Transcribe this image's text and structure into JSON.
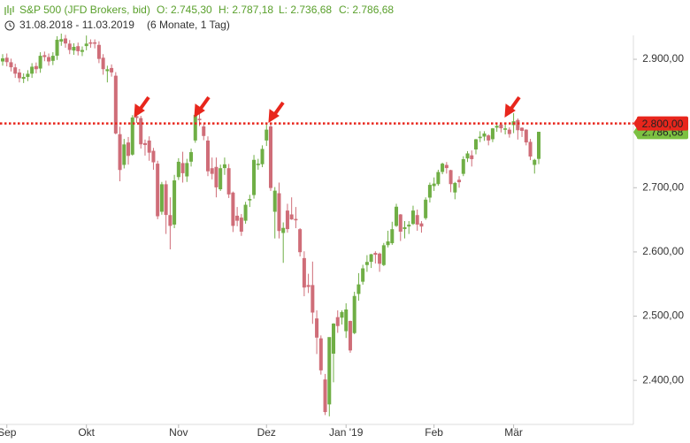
{
  "chart_data": {
    "type": "candlestick",
    "title": "S&P 500 (JFD Brokers, bid)",
    "summary": [
      "O: 2.745,30",
      "H: 2.787,18",
      "L: 2.736,68",
      "C: 2.786,68"
    ],
    "subtitle": "31.08.2018 - 11.03.2019",
    "period": "(6 Monate, 1 Tag)",
    "up_color": "#6fae45",
    "down_color": "#cf6d78",
    "categories": [
      null,
      "Sep",
      null,
      null,
      null,
      null,
      null,
      null,
      null,
      null,
      null,
      null,
      null,
      null,
      null,
      null,
      null,
      null,
      null,
      null,
      "Okt",
      null,
      null,
      null,
      null,
      null,
      null,
      null,
      null,
      null,
      null,
      null,
      null,
      null,
      null,
      null,
      null,
      null,
      null,
      null,
      null,
      null,
      "Nov",
      null,
      null,
      null,
      null,
      null,
      null,
      null,
      null,
      null,
      null,
      null,
      null,
      null,
      null,
      null,
      null,
      null,
      null,
      null,
      null,
      "Dez",
      null,
      null,
      null,
      null,
      null,
      null,
      null,
      null,
      null,
      null,
      null,
      null,
      null,
      null,
      null,
      null,
      null,
      null,
      "Jan '19",
      null,
      null,
      null,
      null,
      null,
      null,
      null,
      null,
      null,
      null,
      null,
      null,
      null,
      null,
      null,
      null,
      null,
      null,
      null,
      null,
      "Feb",
      null,
      null,
      null,
      null,
      null,
      null,
      null,
      null,
      null,
      null,
      null,
      null,
      null,
      null,
      null,
      null,
      null,
      null,
      "Mär",
      null,
      null,
      null,
      null,
      null,
      null
    ],
    "open": [
      2897,
      2902,
      2895,
      2887,
      2879,
      2870,
      2873,
      2878,
      2889,
      2886,
      2906,
      2903,
      2898,
      2906,
      2928,
      2932,
      2924,
      2914,
      2920,
      2912,
      2921,
      2926,
      2926,
      2922,
      2902,
      2882,
      2886,
      2874,
      2783,
      2736,
      2770,
      2752,
      2811,
      2808,
      2769,
      2773,
      2757,
      2737,
      2663,
      2705,
      2657,
      2643,
      2717,
      2738,
      2718,
      2741,
      2774,
      2807,
      2795,
      2773,
      2730,
      2732,
      2698,
      2731,
      2730,
      2692,
      2656,
      2653,
      2649,
      2682,
      2689,
      2737,
      2737,
      2774,
      2795,
      2663,
      2691,
      2630,
      2664,
      2658,
      2651,
      2635,
      2590,
      2548,
      2548,
      2496,
      2465,
      2401,
      2363,
      2442,
      2498,
      2498,
      2477,
      2492,
      2474,
      2535,
      2554,
      2580,
      2585,
      2598,
      2597,
      2580,
      2611,
      2614,
      2641,
      2658,
      2636,
      2640,
      2644,
      2657,
      2644,
      2653,
      2685,
      2703,
      2706,
      2725,
      2735,
      2727,
      2693,
      2712,
      2722,
      2746,
      2750,
      2760,
      2779,
      2780,
      2781,
      2776,
      2794,
      2798,
      2791,
      2790,
      2798,
      2805,
      2793,
      2790,
      2771,
      2736,
      2745.3
    ],
    "high": [
      2908,
      2909,
      2901,
      2893,
      2885,
      2878,
      2883,
      2894,
      2895,
      2911,
      2912,
      2909,
      2911,
      2936,
      2940,
      2938,
      2930,
      2925,
      2926,
      2920,
      2937,
      2931,
      2931,
      2928,
      2908,
      2890,
      2892,
      2880,
      2795,
      2776,
      2779,
      2813,
      2816,
      2812,
      2775,
      2780,
      2762,
      2742,
      2709,
      2711,
      2685,
      2720,
      2746,
      2756,
      2745,
      2761,
      2817,
      2816,
      2800,
      2780,
      2747,
      2747,
      2736,
      2747,
      2737,
      2694,
      2670,
      2659,
      2678,
      2689,
      2751,
      2745,
      2766,
      2800,
      2801,
      2701,
      2708,
      2646,
      2675,
      2685,
      2670,
      2637,
      2601,
      2566,
      2585,
      2509,
      2470,
      2410,
      2467,
      2489,
      2509,
      2509,
      2520,
      2493,
      2538,
      2567,
      2580,
      2595,
      2597,
      2601,
      2599,
      2614,
      2633,
      2647,
      2675,
      2659,
      2648,
      2648,
      2672,
      2666,
      2648,
      2685,
      2708,
      2716,
      2728,
      2739,
      2740,
      2728,
      2709,
      2718,
      2749,
      2757,
      2758,
      2776,
      2788,
      2788,
      2783,
      2793,
      2800,
      2800,
      2801,
      2794,
      2816,
      2808,
      2794,
      2791,
      2776,
      2745,
      2787.18
    ],
    "low": [
      2890,
      2889,
      2881,
      2871,
      2864,
      2863,
      2866,
      2871,
      2878,
      2879,
      2897,
      2890,
      2891,
      2899,
      2921,
      2918,
      2908,
      2907,
      2906,
      2905,
      2914,
      2918,
      2917,
      2894,
      2876,
      2864,
      2873,
      2783,
      2710,
      2730,
      2736,
      2750,
      2801,
      2761,
      2750,
      2742,
      2728,
      2651,
      2658,
      2628,
      2604,
      2637,
      2712,
      2708,
      2709,
      2733,
      2770,
      2796,
      2774,
      2718,
      2713,
      2685,
      2695,
      2720,
      2684,
      2631,
      2640,
      2625,
      2644,
      2670,
      2683,
      2728,
      2732,
      2765,
      2695,
      2621,
      2621,
      2583,
      2630,
      2650,
      2637,
      2593,
      2531,
      2536,
      2488,
      2441,
      2409,
      2346,
      2344,
      2397,
      2474,
      2487,
      2466,
      2443,
      2472,
      2524,
      2549,
      2569,
      2575,
      2582,
      2569,
      2578,
      2607,
      2611,
      2639,
      2617,
      2621,
      2628,
      2642,
      2633,
      2630,
      2650,
      2677,
      2695,
      2703,
      2721,
      2722,
      2693,
      2682,
      2700,
      2718,
      2740,
      2733,
      2752,
      2771,
      2773,
      2766,
      2771,
      2787,
      2786,
      2783,
      2778,
      2785,
      2775,
      2779,
      2766,
      2743,
      2722,
      2736.68
    ],
    "close": [
      2901,
      2896,
      2888,
      2878,
      2871,
      2872,
      2877,
      2888,
      2885,
      2905,
      2904,
      2897,
      2905,
      2930,
      2931,
      2925,
      2915,
      2919,
      2913,
      2914,
      2924,
      2925,
      2925,
      2901,
      2885,
      2884,
      2880,
      2785,
      2728,
      2767,
      2750,
      2809,
      2809,
      2768,
      2767,
      2755,
      2740,
      2656,
      2705,
      2658,
      2641,
      2711,
      2740,
      2723,
      2738,
      2755,
      2813,
      2806,
      2781,
      2726,
      2722,
      2701,
      2730,
      2736,
      2690,
      2641,
      2649,
      2632,
      2673,
      2682,
      2743,
      2737,
      2760,
      2790,
      2700,
      2695,
      2633,
      2637,
      2636,
      2651,
      2650,
      2600,
      2545,
      2546,
      2506,
      2467,
      2416,
      2351,
      2467,
      2488,
      2485,
      2506,
      2510,
      2447,
      2531,
      2549,
      2574,
      2584,
      2596,
      2596,
      2582,
      2610,
      2616,
      2635,
      2670,
      2632,
      2638,
      2642,
      2664,
      2643,
      2640,
      2681,
      2704,
      2706,
      2724,
      2737,
      2731,
      2706,
      2707,
      2709,
      2744,
      2753,
      2745,
      2775,
      2779,
      2784,
      2774,
      2792,
      2796,
      2793,
      2792,
      2784,
      2803,
      2790,
      2789,
      2771,
      2749,
      2743,
      2786.68
    ],
    "ylim": [
      2330,
      2940
    ],
    "yticks": [
      {
        "value": 2400,
        "label": "2.400,00"
      },
      {
        "value": 2500,
        "label": "2.500,00"
      },
      {
        "value": 2600,
        "label": "2.600,00"
      },
      {
        "value": 2700,
        "label": "2.700,00"
      },
      {
        "value": 2900,
        "label": "2.900,00"
      }
    ],
    "hlines": [
      {
        "value": 2786.68,
        "label": "2.786,68",
        "color": "#7cc142",
        "style": "none"
      },
      {
        "value": 2800,
        "label": "2.800,00",
        "color": "#e8261c",
        "style": "dotted"
      }
    ]
  }
}
